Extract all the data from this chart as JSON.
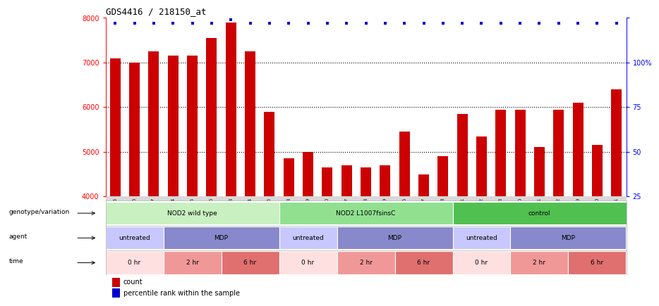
{
  "title": "GDS4416 / 218150_at",
  "samples": [
    "GSM560855",
    "GSM560856",
    "GSM560857",
    "GSM560864",
    "GSM560865",
    "GSM560866",
    "GSM560873",
    "GSM560874",
    "GSM560875",
    "GSM560858",
    "GSM560859",
    "GSM560860",
    "GSM560867",
    "GSM560868",
    "GSM560869",
    "GSM560876",
    "GSM560877",
    "GSM560878",
    "GSM560861",
    "GSM560862",
    "GSM560863",
    "GSM560870",
    "GSM560871",
    "GSM560872",
    "GSM560879",
    "GSM560880",
    "GSM560881"
  ],
  "bar_values": [
    7100,
    7000,
    7250,
    7150,
    7150,
    7550,
    7900,
    7250,
    5900,
    4850,
    5000,
    4650,
    4700,
    4650,
    4700,
    5450,
    4500,
    4900,
    5850,
    5350,
    5950,
    5950,
    5100,
    5950,
    6100,
    5150,
    6400
  ],
  "percentile_values": [
    97,
    97,
    97,
    97,
    97,
    97,
    99,
    97,
    97,
    97,
    97,
    97,
    97,
    97,
    97,
    97,
    97,
    97,
    97,
    97,
    97,
    97,
    97,
    97,
    97,
    97,
    97
  ],
  "ylim_left": [
    4000,
    8000
  ],
  "ylim_right": [
    0,
    100
  ],
  "bar_color": "#cc0000",
  "dot_color": "#0000cc",
  "genotype_rows": [
    {
      "label": "NOD2 wild type",
      "start": 0,
      "end": 9,
      "color": "#c8f0c0"
    },
    {
      "label": "NOD2 L1007fsinsC",
      "start": 9,
      "end": 18,
      "color": "#90e090"
    },
    {
      "label": "control",
      "start": 18,
      "end": 27,
      "color": "#50c050"
    }
  ],
  "agent_rows": [
    {
      "label": "untreated",
      "start": 0,
      "end": 3,
      "color": "#c8c8ff"
    },
    {
      "label": "MDP",
      "start": 3,
      "end": 9,
      "color": "#8888cc"
    },
    {
      "label": "untreated",
      "start": 9,
      "end": 12,
      "color": "#c8c8ff"
    },
    {
      "label": "MDP",
      "start": 12,
      "end": 18,
      "color": "#8888cc"
    },
    {
      "label": "untreated",
      "start": 18,
      "end": 21,
      "color": "#c8c8ff"
    },
    {
      "label": "MDP",
      "start": 21,
      "end": 27,
      "color": "#8888cc"
    }
  ],
  "time_rows": [
    {
      "label": "0 hr",
      "start": 0,
      "end": 3,
      "color": "#ffe0e0"
    },
    {
      "label": "2 hr",
      "start": 3,
      "end": 6,
      "color": "#f09898"
    },
    {
      "label": "6 hr",
      "start": 6,
      "end": 9,
      "color": "#e07070"
    },
    {
      "label": "0 hr",
      "start": 9,
      "end": 12,
      "color": "#ffe0e0"
    },
    {
      "label": "2 hr",
      "start": 12,
      "end": 15,
      "color": "#f09898"
    },
    {
      "label": "6 hr",
      "start": 15,
      "end": 18,
      "color": "#e07070"
    },
    {
      "label": "0 hr",
      "start": 18,
      "end": 21,
      "color": "#ffe0e0"
    },
    {
      "label": "2 hr",
      "start": 21,
      "end": 24,
      "color": "#f09898"
    },
    {
      "label": "6 hr",
      "start": 24,
      "end": 27,
      "color": "#e07070"
    }
  ],
  "row_labels": [
    "genotype/variation",
    "agent",
    "time"
  ],
  "legend_count_label": "count",
  "legend_count_color": "#cc0000",
  "legend_pct_label": "percentile rank within the sample",
  "legend_pct_color": "#0000cc",
  "xtick_bg_color": "#d8d8d8",
  "right_axis_pct_label": "100%"
}
